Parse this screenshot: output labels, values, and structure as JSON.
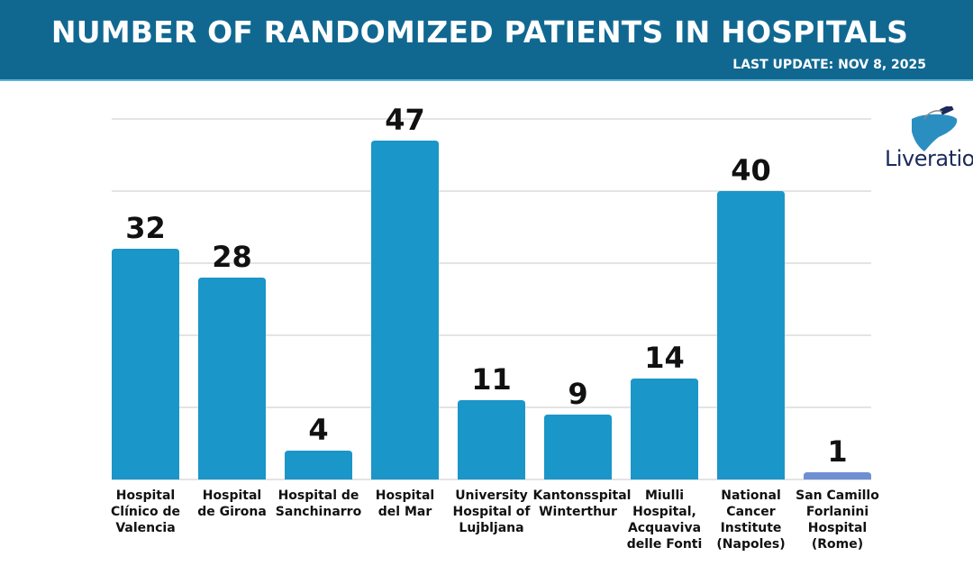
{
  "header": {
    "title": "NUMBER OF RANDOMIZED PATIENTS IN HOSPITALS",
    "update": "LAST UPDATE: NOV 8, 2025"
  },
  "logo": {
    "text": "Liveratio",
    "icon": "liver-icon"
  },
  "chart_data": {
    "type": "bar",
    "categories": [
      "Hospital\nClínico de\nValencia",
      "Hospital\nde Girona",
      "Hospital de\nSanchinarro",
      "Hospital\ndel Mar",
      "University\nHospital of\nLujbljana",
      "Kantonsspital\nWinterthur",
      "Miulli\nHospital,\nAcquaviva\ndelle Fonti",
      "National\nCancer\nInstitute\n(Napoles)",
      "San Camillo\nForlanini\nHospital\n(Rome)"
    ],
    "values": [
      32,
      28,
      4,
      47,
      11,
      9,
      14,
      40,
      1
    ],
    "ylim": [
      0,
      50
    ],
    "grid": true,
    "colors": {
      "bar": "#1b96c8",
      "last_bar": "#6f8fd3"
    }
  }
}
